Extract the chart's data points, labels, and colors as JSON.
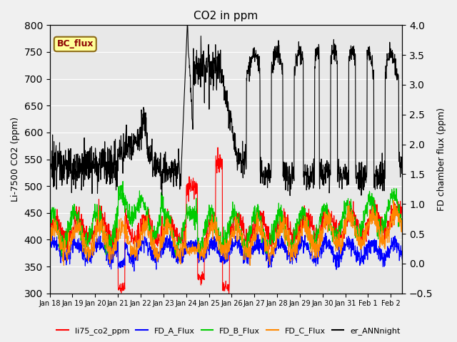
{
  "title": "CO2 in ppm",
  "ylabel_left": "Li-7500 CO2 (ppm)",
  "ylabel_right": "FD chamber flux (ppm)",
  "ylim_left": [
    300,
    800
  ],
  "ylim_right": [
    -0.5,
    4.0
  ],
  "yticks_left": [
    300,
    350,
    400,
    450,
    500,
    550,
    600,
    650,
    700,
    750,
    800
  ],
  "yticks_right": [
    -0.5,
    0.0,
    0.5,
    1.0,
    1.5,
    2.0,
    2.5,
    3.0,
    3.5,
    4.0
  ],
  "xlim": [
    0,
    15.5
  ],
  "xtick_labels": [
    "Jan 18",
    "Jan 19",
    "Jan 20",
    "Jan 21",
    "Jan 22",
    "Jan 23",
    "Jan 24",
    "Jan 25",
    "Jan 26",
    "Jan 27",
    "Jan 28",
    "Jan 29",
    "Jan 30",
    "Jan 31",
    "Feb 1",
    "Feb 2"
  ],
  "xtick_positions": [
    0,
    1,
    2,
    3,
    4,
    5,
    6,
    7,
    8,
    9,
    10,
    11,
    12,
    13,
    14,
    15
  ],
  "colors": {
    "li75": "#ff0000",
    "FD_A": "#0000ff",
    "FD_B": "#00cc00",
    "FD_C": "#ff8800",
    "er_ANN": "#000000"
  },
  "legend_labels": [
    "li75_co2_ppm",
    "FD_A_Flux",
    "FD_B_Flux",
    "FD_C_Flux",
    "er_ANNnight"
  ],
  "bc_flux_label": "BC_flux",
  "fig_facecolor": "#f0f0f0",
  "ax_facecolor": "#e8e8e8"
}
